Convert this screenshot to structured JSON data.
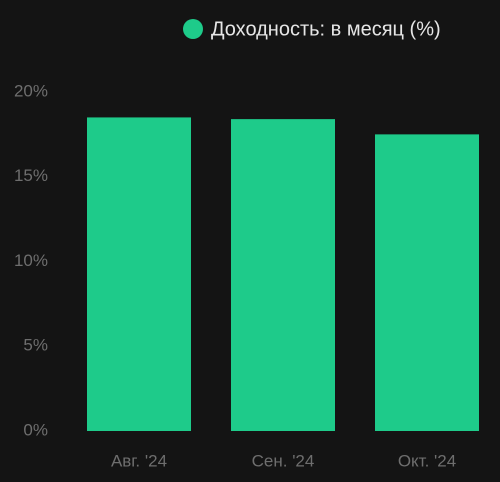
{
  "chart_data": {
    "type": "bar",
    "categories": [
      "Авг. '24",
      "Сен. '24",
      "Окт. '24"
    ],
    "series": [
      {
        "name": "Доходность: в месяц (%)",
        "color": "#1ecb8a",
        "values": [
          18.5,
          18.4,
          17.5
        ]
      }
    ],
    "ylim": [
      0,
      20
    ],
    "yticks": [
      {
        "value": 0,
        "label": "0%"
      },
      {
        "value": 5,
        "label": "5%"
      },
      {
        "value": 10,
        "label": "10%"
      },
      {
        "value": 15,
        "label": "15%"
      },
      {
        "value": 20,
        "label": "20%"
      }
    ],
    "grid": false,
    "legend": "top-right"
  }
}
